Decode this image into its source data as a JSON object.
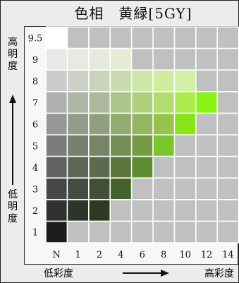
{
  "title": "色相　黄緑[5GY]",
  "y_axis": {
    "high_label": [
      "高",
      "明",
      "度"
    ],
    "low_label": [
      "低",
      "明",
      "度"
    ]
  },
  "x_axis": {
    "low_label": "低彩度",
    "high_label": "高彩度"
  },
  "chart_data": {
    "type": "heatmap",
    "title": "色相　黄緑[5GY]",
    "x": [
      "N",
      "1",
      "2",
      "4",
      "6",
      "8",
      "10",
      "12",
      "14"
    ],
    "y": [
      "9.5",
      "9",
      "8",
      "7",
      "6",
      "5",
      "4",
      "3",
      "2",
      "1"
    ],
    "background_color": "#c0c0c0",
    "cells": [
      {
        "value": "9.5",
        "chroma": "N",
        "color": "#ffffff"
      },
      {
        "value": "9",
        "chroma": "N",
        "color": "#e8e8e8"
      },
      {
        "value": "9",
        "chroma": "1",
        "color": "#e7e9e3"
      },
      {
        "value": "9",
        "chroma": "2",
        "color": "#e6eade"
      },
      {
        "value": "9",
        "chroma": "4",
        "color": "#e4ecd4"
      },
      {
        "value": "8",
        "chroma": "N",
        "color": "#cccccc"
      },
      {
        "value": "8",
        "chroma": "1",
        "color": "#ccd0c6"
      },
      {
        "value": "8",
        "chroma": "2",
        "color": "#cbd3bd"
      },
      {
        "value": "8",
        "chroma": "4",
        "color": "#cadbb0"
      },
      {
        "value": "8",
        "chroma": "6",
        "color": "#cde6a8"
      },
      {
        "value": "8",
        "chroma": "8",
        "color": "#d0ec9f"
      },
      {
        "value": "8",
        "chroma": "10",
        "color": "#d1f0a3"
      },
      {
        "value": "7",
        "chroma": "N",
        "color": "#b0b0b0"
      },
      {
        "value": "7",
        "chroma": "1",
        "color": "#adb5a6"
      },
      {
        "value": "7",
        "chroma": "2",
        "color": "#acb99c"
      },
      {
        "value": "7",
        "chroma": "4",
        "color": "#acc58d"
      },
      {
        "value": "7",
        "chroma": "6",
        "color": "#afd17e"
      },
      {
        "value": "7",
        "chroma": "8",
        "color": "#b3dc6e"
      },
      {
        "value": "7",
        "chroma": "10",
        "color": "#acec4c"
      },
      {
        "value": "7",
        "chroma": "12",
        "color": "#88f214"
      },
      {
        "value": "6",
        "chroma": "N",
        "color": "#969696"
      },
      {
        "value": "6",
        "chroma": "1",
        "color": "#939b8a"
      },
      {
        "value": "6",
        "chroma": "2",
        "color": "#919f7f"
      },
      {
        "value": "6",
        "chroma": "4",
        "color": "#91ab70"
      },
      {
        "value": "6",
        "chroma": "6",
        "color": "#93b760"
      },
      {
        "value": "6",
        "chroma": "8",
        "color": "#97c24c"
      },
      {
        "value": "6",
        "chroma": "10",
        "color": "#86e418"
      },
      {
        "value": "5",
        "chroma": "N",
        "color": "#7c7c7c"
      },
      {
        "value": "5",
        "chroma": "1",
        "color": "#78816f"
      },
      {
        "value": "5",
        "chroma": "2",
        "color": "#768565"
      },
      {
        "value": "5",
        "chroma": "4",
        "color": "#758f55"
      },
      {
        "value": "5",
        "chroma": "6",
        "color": "#779b44"
      },
      {
        "value": "5",
        "chroma": "8",
        "color": "#7bc52c"
      },
      {
        "value": "4",
        "chroma": "N",
        "color": "#616161"
      },
      {
        "value": "4",
        "chroma": "1",
        "color": "#5e6657"
      },
      {
        "value": "4",
        "chroma": "2",
        "color": "#5c6a4d"
      },
      {
        "value": "4",
        "chroma": "4",
        "color": "#5c763e"
      },
      {
        "value": "4",
        "chroma": "6",
        "color": "#5e8c30"
      },
      {
        "value": "3",
        "chroma": "N",
        "color": "#474747"
      },
      {
        "value": "3",
        "chroma": "1",
        "color": "#454c40"
      },
      {
        "value": "3",
        "chroma": "2",
        "color": "#435037"
      },
      {
        "value": "3",
        "chroma": "4",
        "color": "#436128"
      },
      {
        "value": "2",
        "chroma": "N",
        "color": "#303030"
      },
      {
        "value": "2",
        "chroma": "1",
        "color": "#2e342a"
      },
      {
        "value": "2",
        "chroma": "2",
        "color": "#2d3a23"
      },
      {
        "value": "1",
        "chroma": "N",
        "color": "#1c1c1c"
      }
    ],
    "grid": true
  }
}
